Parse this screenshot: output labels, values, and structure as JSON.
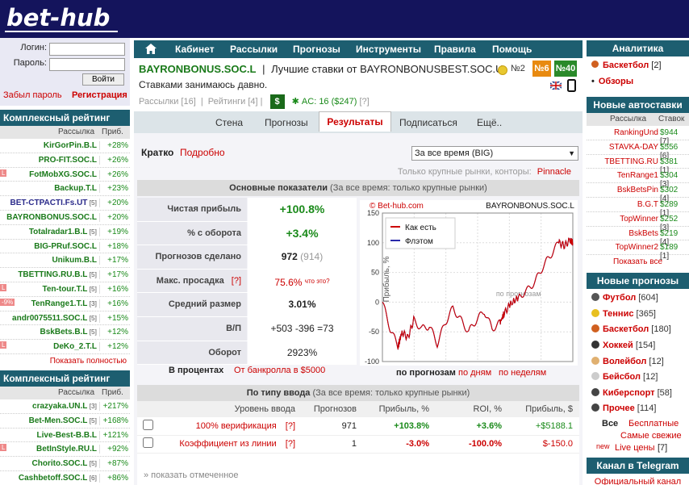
{
  "header": {
    "logo": "bet-hub"
  },
  "login": {
    "login_label": "Логин:",
    "password_label": "Пароль:",
    "submit": "Войти",
    "forgot": "Забыл пароль",
    "register": "Регистрация"
  },
  "big_rating": {
    "title": "Комплексный рейтинг BIG",
    "col_name": "Рассылка",
    "col_profit": "Приб.",
    "rows": [
      {
        "name": "KirGorPin.B.L",
        "extra": "",
        "pct": "+28%",
        "tag": ""
      },
      {
        "name": "PRO-FIT.SOC.L",
        "extra": "",
        "pct": "+26%",
        "tag": ""
      },
      {
        "name": "FotMobXG.SOC.L",
        "extra": "",
        "pct": "+26%",
        "tag": "L"
      },
      {
        "name": "Backup.T.L",
        "extra": "",
        "pct": "+23%",
        "tag": ""
      },
      {
        "name": "BET-CTPACTI.Fs.UT",
        "extra": "[5]",
        "pct": "+20%",
        "tag": ""
      },
      {
        "name": "BAYRONBONUS.SOC.L",
        "extra": "",
        "pct": "+20%",
        "tag": ""
      },
      {
        "name": "Totalradar1.B.L",
        "extra": "[5]",
        "pct": "+19%",
        "tag": ""
      },
      {
        "name": "BIG-PRuf.SOC.L",
        "extra": "",
        "pct": "+18%",
        "tag": ""
      },
      {
        "name": "Unikum.B.L",
        "extra": "",
        "pct": "+17%",
        "tag": ""
      },
      {
        "name": "TBETTING.RU.B.L",
        "extra": "[5]",
        "pct": "+17%",
        "tag": ""
      },
      {
        "name": "Ten-tour.T.L",
        "extra": "[5]",
        "pct": "+16%",
        "tag": "L"
      },
      {
        "name": "TenRange1.T.L",
        "extra": "[3]",
        "pct": "+16%",
        "tag": "-9%"
      },
      {
        "name": "andr0075511.SOC.L",
        "extra": "[5]",
        "pct": "+15%",
        "tag": ""
      },
      {
        "name": "BskBets.B.L",
        "extra": "[5]",
        "pct": "+12%",
        "tag": ""
      },
      {
        "name": "DeKo_2.T.L",
        "extra": "",
        "pct": "+12%",
        "tag": "L"
      }
    ],
    "more": "Показать полностью"
  },
  "rating": {
    "title": "Комплексный рейтинг",
    "col_name": "Рассылка",
    "col_profit": "Приб.",
    "rows": [
      {
        "name": "crazyaka.UN.L",
        "extra": "[3]",
        "pct": "+217%",
        "tag": ""
      },
      {
        "name": "Bet-Men.SOC.L",
        "extra": "[5]",
        "pct": "+168%",
        "tag": ""
      },
      {
        "name": "Live-Best-B.B.L",
        "extra": "",
        "pct": "+121%",
        "tag": ""
      },
      {
        "name": "BetInStyle.RU.L",
        "extra": "",
        "pct": "+92%",
        "tag": "L"
      },
      {
        "name": "Chorito.SOC.L",
        "extra": "[5]",
        "pct": "+87%",
        "tag": ""
      },
      {
        "name": "Cashbetoff.SOC.L",
        "extra": "[6]",
        "pct": "+86%",
        "tag": ""
      }
    ]
  },
  "nav": {
    "items": [
      "Кабинет",
      "Рассылки",
      "Прогнозы",
      "Инструменты",
      "Правила",
      "Помощь"
    ]
  },
  "profile": {
    "name": "BAYRONBONUS.SOC.L",
    "sep": "|",
    "tagline": "Лучшие ставки от BAYRONBONUSBEST.SOC.U",
    "desc": "Ставками занимаюсь давно.",
    "mailings": "Рассылки [16]",
    "ratings": "Рейтинги [4]",
    "dollar": "$",
    "ac": "AC: 16 ($247)",
    "ac_q": "[?]",
    "badge1": "№2",
    "badge2": "№6",
    "badge3": "№40"
  },
  "tabs": [
    "Стена",
    "Прогнозы",
    "Результаты",
    "Подписаться",
    "Ещё.."
  ],
  "filters": {
    "brief": "Кратко",
    "detailed": "Подробно",
    "period": "За все время (BIG)",
    "markets": "Только крупные рынки, конторы:",
    "bookmaker": "Pinnacle"
  },
  "main_stats": {
    "title": "Основные показатели",
    "subtitle": "(За все время: только крупные рынки)",
    "rows": [
      {
        "k": "Чистая прибыль",
        "v": "+100.8%",
        "note": ""
      },
      {
        "k": "% с оборота",
        "v": "+3.4%",
        "note": ""
      },
      {
        "k": "Прогнозов сделано",
        "v": "972",
        "note": "(914)"
      },
      {
        "k": "Макс. просадка",
        "v": "75.6%",
        "note": "что это?",
        "q": "[?]"
      },
      {
        "k": "Средний размер",
        "v": "3.01%",
        "note": ""
      },
      {
        "k": "В/П",
        "v": "+503 -396 =73",
        "note": ""
      },
      {
        "k": "Оборот",
        "v": "2923%",
        "note": ""
      }
    ],
    "percent_label": "В процентах",
    "bank_label": "От банкролла в $5000"
  },
  "chart_data": {
    "type": "line",
    "title": "BAYRONBONUS.SOC.L",
    "watermark": "© Bet-hub.com",
    "ylabel": "Прибыль, %",
    "xlabel": "по прогнозам",
    "annotation": "по прогнозам",
    "ylim": [
      -100,
      150
    ],
    "yticks": [
      -100,
      -50,
      0,
      50,
      100,
      150
    ],
    "xlim": [
      0,
      972
    ],
    "grid": true,
    "legend": "top-left",
    "series": [
      {
        "name": "Как есть",
        "color": "#cc0000",
        "x": [
          0,
          40,
          80,
          100,
          130,
          160,
          200,
          240,
          280,
          320,
          360,
          400,
          440,
          480,
          520,
          560,
          600,
          620,
          650,
          700,
          740,
          780,
          820,
          860,
          900,
          930,
          960,
          972
        ],
        "y": [
          0,
          -45,
          -75,
          -50,
          -60,
          -30,
          -45,
          -40,
          -70,
          -35,
          -10,
          -30,
          -50,
          -30,
          -15,
          -45,
          -35,
          -20,
          -5,
          10,
          20,
          35,
          60,
          80,
          100,
          95,
          105,
          100
        ]
      },
      {
        "name": "Флэтом",
        "color": "#2a2aaa",
        "x": [
          0,
          40,
          80,
          100,
          130,
          160,
          200,
          240,
          280,
          320,
          360,
          400,
          440,
          480,
          520,
          560,
          600,
          620,
          650,
          700,
          740,
          780,
          820,
          860,
          900,
          930,
          960,
          972
        ],
        "y": [
          0,
          -45,
          -75,
          -50,
          -60,
          -30,
          -45,
          -40,
          -70,
          -35,
          -10,
          -30,
          -50,
          -30,
          -15,
          -45,
          -35,
          -20,
          -5,
          10,
          20,
          35,
          60,
          80,
          100,
          95,
          105,
          100
        ]
      }
    ]
  },
  "chart_modes": {
    "forecasts": "по прогнозам",
    "days": "по дням",
    "weeks": "по неделям"
  },
  "by_type": {
    "title": "По типу ввода",
    "subtitle": "(За все время: только крупные рынки)",
    "headers": [
      "Уровень ввода",
      "Прогнозов",
      "Прибыль, %",
      "ROI, %",
      "Прибыль, $"
    ],
    "rows": [
      {
        "level": "100% верификация",
        "q": "[?]",
        "count": "971",
        "profit": "+103.8%",
        "roi": "+3.6%",
        "usd": "+$5188.1"
      },
      {
        "level": "Коэффициент из линии",
        "q": "[?]",
        "count": "1",
        "profit": "-3.0%",
        "roi": "-100.0%",
        "usd": "$-150.0"
      }
    ],
    "show_marked": "» показать отмеченное"
  },
  "analytics": {
    "title": "Аналитика",
    "items": [
      {
        "label": "Баскетбол",
        "count": "[2]"
      },
      {
        "label": "Обзоры",
        "count": ""
      }
    ]
  },
  "auto_bets": {
    "title": "Новые автоставки",
    "col_name": "Рассылка",
    "col_bets": "Ставок",
    "rows": [
      {
        "name": "RankingUnd",
        "v": "$944",
        "n": "[7]"
      },
      {
        "name": "STAVKA-DAY",
        "v": "$556",
        "n": "[6]"
      },
      {
        "name": "TBETTING.RU",
        "v": "$381",
        "n": "[1]"
      },
      {
        "name": "TenRange1",
        "v": "$304",
        "n": "[3]"
      },
      {
        "name": "BskBetsPin",
        "v": "$302",
        "n": "[4]"
      },
      {
        "name": "B.G.T",
        "v": "$289",
        "n": "[1]"
      },
      {
        "name": "TopWinner",
        "v": "$252",
        "n": "[3]"
      },
      {
        "name": "BskBets",
        "v": "$219",
        "n": "[4]"
      },
      {
        "name": "TopWinner2",
        "v": "$189",
        "n": "[1]"
      }
    ],
    "more": "Показать все"
  },
  "new_forecasts": {
    "title": "Новые прогнозы",
    "items": [
      {
        "label": "Футбол",
        "count": "[604]",
        "color": "#555"
      },
      {
        "label": "Теннис",
        "count": "[365]",
        "color": "#e8c020"
      },
      {
        "label": "Баскетбол",
        "count": "[180]",
        "color": "#d06020"
      },
      {
        "label": "Хоккей",
        "count": "[154]",
        "color": "#333"
      },
      {
        "label": "Волейбол",
        "count": "[12]",
        "color": "#e0b070"
      },
      {
        "label": "Бейсбол",
        "count": "[12]",
        "color": "#ccc"
      },
      {
        "label": "Киберспорт",
        "count": "[58]",
        "color": "#444"
      },
      {
        "label": "Прочее",
        "count": "[114]",
        "color": "#444"
      }
    ],
    "all": "Все",
    "free": "Бесплатные",
    "fresh": "Самые свежие",
    "new_label": "new",
    "live": "Live цены",
    "live_count": "[7]"
  },
  "telegram": {
    "title": "Канал в Telegram",
    "link": "Официальный канал"
  }
}
